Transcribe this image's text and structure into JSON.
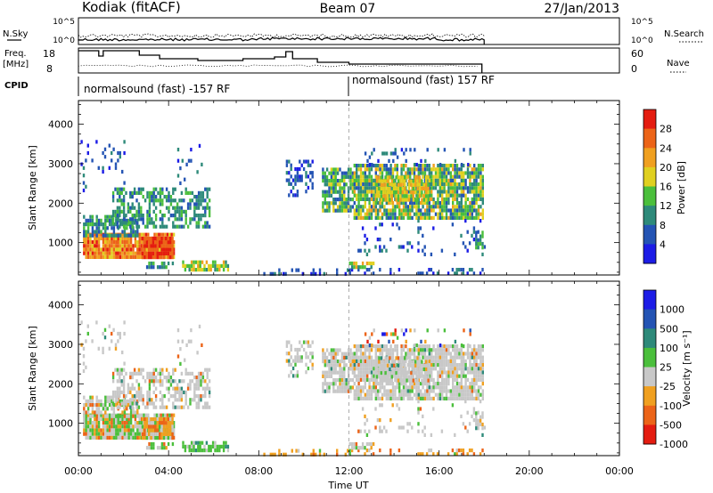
{
  "header": {
    "station": "Kodiak (fitACF)",
    "beam": "Beam 07",
    "date": "27/Jan/2013"
  },
  "top_labels": {
    "nsky": "N.Sky",
    "nsearch": "N.Search",
    "freq_top": "Freq.",
    "freq_unit": "[MHz]",
    "nave": "Nave",
    "cpid": "CPID"
  },
  "top_ticks": {
    "nsky_left": [
      "10^5",
      "10^0"
    ],
    "nsky_right": [
      "10^5",
      "10^0"
    ],
    "freq_left": [
      "18",
      "8"
    ],
    "nave_right": [
      "60",
      "0"
    ]
  },
  "cpid_segments": [
    "normalsound (fast) -157 RF",
    "normalsound (fast) 157 RF"
  ],
  "chart_data": [
    {
      "type": "heatmap",
      "title": "",
      "ylabel": "Slant Range [km]",
      "xlabel": "Time UT",
      "x_ticks": [
        "00:00",
        "04:00",
        "08:00",
        "12:00",
        "16:00",
        "20:00",
        "00:00"
      ],
      "y_ticks": [
        "1000",
        "2000",
        "3000",
        "4000"
      ],
      "ylim": [
        180,
        4600
      ],
      "xlim_hours": [
        0,
        24
      ],
      "colorbar_label": "Power [dB]",
      "colorbar_ticks": [
        "4",
        "8",
        "12",
        "16",
        "20",
        "24",
        "28"
      ],
      "colorbar_colors": [
        "#1c1ce6",
        "#2454b4",
        "#2e8a7a",
        "#4bbf3c",
        "#e0d020",
        "#f0a020",
        "#ec6418",
        "#e41c10"
      ]
    },
    {
      "type": "heatmap",
      "title": "",
      "ylabel": "Slant Range [km]",
      "xlabel": "Time UT",
      "x_ticks": [
        "00:00",
        "04:00",
        "08:00",
        "12:00",
        "16:00",
        "20:00",
        "00:00"
      ],
      "y_ticks": [
        "1000",
        "2000",
        "3000",
        "4000"
      ],
      "ylim": [
        180,
        4600
      ],
      "xlim_hours": [
        0,
        24
      ],
      "colorbar_label": "Velocity [m s⁻¹]",
      "colorbar_ticks": [
        "1000",
        "500",
        "100",
        "25",
        "-25",
        "-100",
        "-500",
        "-1000"
      ],
      "colorbar_colors": [
        "#1c1ce6",
        "#2454b4",
        "#2e8a7a",
        "#4bbf3c",
        "#c8c8c8",
        "#f0a020",
        "#ec6418",
        "#e41c10"
      ]
    }
  ],
  "xaxis_title": "Time UT"
}
